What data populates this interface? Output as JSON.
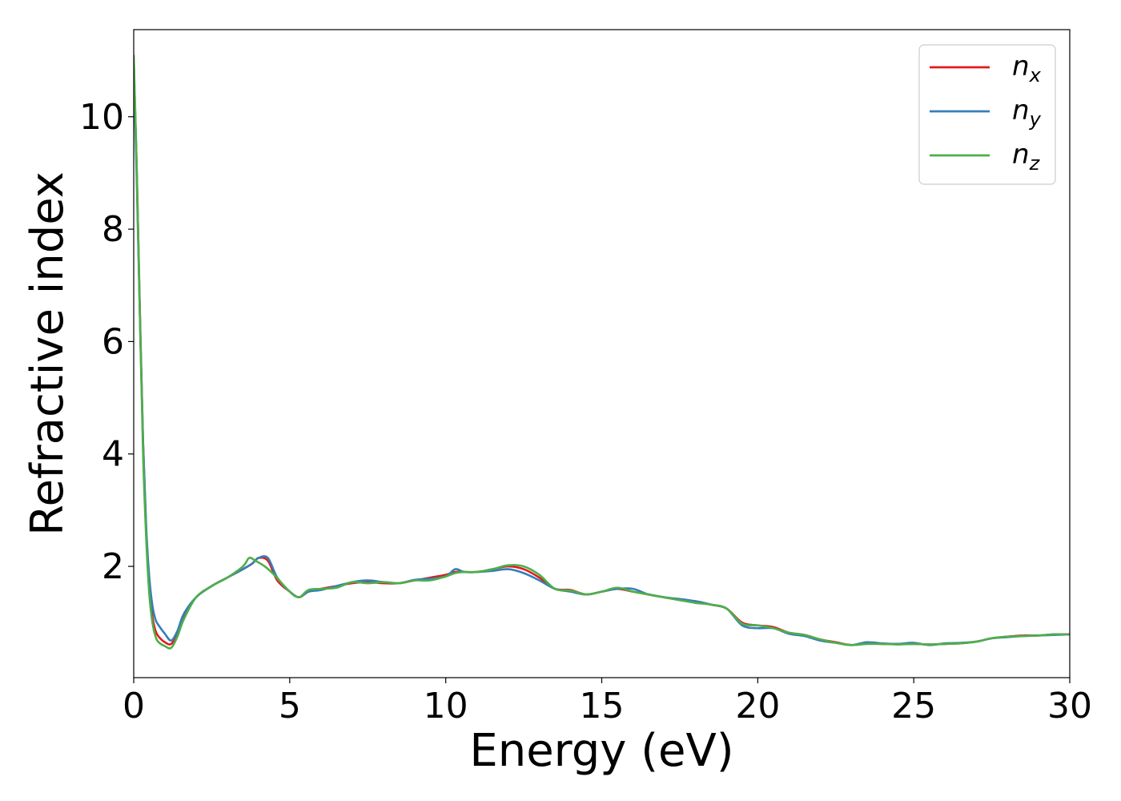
{
  "chart_data": {
    "type": "line",
    "xlabel": "Energy (eV)",
    "ylabel": "Refractive index",
    "xlim": [
      0,
      30
    ],
    "ylim": [
      0.02,
      11.55
    ],
    "xticks": [
      "0",
      "5",
      "10",
      "15",
      "20",
      "25",
      "30"
    ],
    "yticks": [
      "2",
      "4",
      "6",
      "8",
      "10"
    ],
    "grid": false,
    "legend_position": "top-right",
    "series": [
      {
        "name": "n_x",
        "main": "n",
        "sub": "x",
        "color": "#e41a1c",
        "x": [
          0,
          0.1,
          0.2,
          0.3,
          0.4,
          0.5,
          0.6,
          0.7,
          0.8,
          1.0,
          1.2,
          1.4,
          1.6,
          2.0,
          2.5,
          3.0,
          3.5,
          3.8,
          4.0,
          4.3,
          4.6,
          5.0,
          5.3,
          5.6,
          6.0,
          6.5,
          7.0,
          7.5,
          8.0,
          8.5,
          9.0,
          9.5,
          10.0,
          10.3,
          10.6,
          11.0,
          11.5,
          12.0,
          12.5,
          13.0,
          13.5,
          14.0,
          14.5,
          15.0,
          15.5,
          16.0,
          16.5,
          17.0,
          17.5,
          18.0,
          18.5,
          19.0,
          19.5,
          20.0,
          20.5,
          21.0,
          21.5,
          22.0,
          22.5,
          23.0,
          23.5,
          24.0,
          24.5,
          25.0,
          25.5,
          26.0,
          26.5,
          27.0,
          27.5,
          28.0,
          28.5,
          29.0,
          29.5,
          30.0
        ],
        "y": [
          11.0,
          9.0,
          6.5,
          4.2,
          2.6,
          1.6,
          1.1,
          0.85,
          0.75,
          0.65,
          0.62,
          0.8,
          1.1,
          1.45,
          1.65,
          1.8,
          1.95,
          2.05,
          2.15,
          2.1,
          1.75,
          1.55,
          1.45,
          1.55,
          1.6,
          1.65,
          1.7,
          1.72,
          1.7,
          1.7,
          1.75,
          1.8,
          1.85,
          1.9,
          1.9,
          1.9,
          1.95,
          2.0,
          1.95,
          1.8,
          1.6,
          1.58,
          1.5,
          1.55,
          1.6,
          1.55,
          1.5,
          1.45,
          1.4,
          1.38,
          1.32,
          1.25,
          1.0,
          0.95,
          0.92,
          0.82,
          0.78,
          0.7,
          0.65,
          0.6,
          0.63,
          0.62,
          0.62,
          0.62,
          0.61,
          0.62,
          0.63,
          0.66,
          0.72,
          0.75,
          0.77,
          0.77,
          0.79,
          0.79
        ]
      },
      {
        "name": "n_y",
        "main": "n",
        "sub": "y",
        "color": "#377eb8",
        "x": [
          0,
          0.1,
          0.2,
          0.3,
          0.4,
          0.5,
          0.6,
          0.7,
          0.8,
          1.0,
          1.2,
          1.4,
          1.6,
          2.0,
          2.5,
          3.0,
          3.5,
          3.8,
          4.0,
          4.3,
          4.6,
          5.0,
          5.3,
          5.6,
          6.0,
          6.5,
          7.0,
          7.5,
          8.0,
          8.5,
          9.0,
          9.5,
          10.0,
          10.3,
          10.6,
          11.0,
          11.5,
          12.0,
          12.5,
          13.0,
          13.5,
          14.0,
          14.5,
          15.0,
          15.5,
          16.0,
          16.5,
          17.0,
          17.5,
          18.0,
          18.5,
          19.0,
          19.5,
          20.0,
          20.5,
          21.0,
          21.5,
          22.0,
          22.5,
          23.0,
          23.5,
          24.0,
          24.5,
          25.0,
          25.5,
          26.0,
          26.5,
          27.0,
          27.5,
          28.0,
          28.5,
          29.0,
          29.5,
          30.0
        ],
        "y": [
          10.9,
          8.8,
          6.4,
          4.2,
          2.7,
          1.8,
          1.3,
          1.05,
          0.95,
          0.8,
          0.68,
          0.85,
          1.15,
          1.45,
          1.65,
          1.8,
          1.95,
          2.05,
          2.15,
          2.15,
          1.8,
          1.55,
          1.45,
          1.55,
          1.58,
          1.65,
          1.72,
          1.75,
          1.72,
          1.7,
          1.76,
          1.78,
          1.82,
          1.95,
          1.9,
          1.9,
          1.92,
          1.95,
          1.88,
          1.75,
          1.6,
          1.55,
          1.5,
          1.55,
          1.6,
          1.6,
          1.5,
          1.45,
          1.42,
          1.38,
          1.32,
          1.25,
          0.95,
          0.9,
          0.9,
          0.8,
          0.76,
          0.68,
          0.64,
          0.6,
          0.65,
          0.63,
          0.62,
          0.64,
          0.6,
          0.63,
          0.64,
          0.66,
          0.72,
          0.74,
          0.76,
          0.77,
          0.78,
          0.79
        ]
      },
      {
        "name": "n_z",
        "main": "n",
        "sub": "z",
        "color": "#4daf4a",
        "x": [
          0,
          0.1,
          0.2,
          0.3,
          0.4,
          0.5,
          0.6,
          0.7,
          0.8,
          1.0,
          1.2,
          1.4,
          1.6,
          2.0,
          2.5,
          3.0,
          3.5,
          3.7,
          3.9,
          4.2,
          4.5,
          5.0,
          5.3,
          5.6,
          6.0,
          6.5,
          7.0,
          7.5,
          8.0,
          8.5,
          9.0,
          9.5,
          10.0,
          10.3,
          10.6,
          11.0,
          11.5,
          12.0,
          12.5,
          13.0,
          13.5,
          14.0,
          14.5,
          15.0,
          15.5,
          16.0,
          16.5,
          17.0,
          17.5,
          18.0,
          18.5,
          19.0,
          19.5,
          20.0,
          20.5,
          21.0,
          21.5,
          22.0,
          22.5,
          23.0,
          23.5,
          24.0,
          24.5,
          25.0,
          25.5,
          26.0,
          26.5,
          27.0,
          27.5,
          28.0,
          28.5,
          29.0,
          29.5,
          30.0
        ],
        "y": [
          11.1,
          9.0,
          6.4,
          4.0,
          2.5,
          1.5,
          1.0,
          0.75,
          0.65,
          0.58,
          0.55,
          0.75,
          1.05,
          1.45,
          1.65,
          1.8,
          2.0,
          2.15,
          2.1,
          2.0,
          1.85,
          1.55,
          1.45,
          1.58,
          1.6,
          1.62,
          1.72,
          1.7,
          1.72,
          1.7,
          1.75,
          1.75,
          1.82,
          1.88,
          1.9,
          1.9,
          1.95,
          2.02,
          2.0,
          1.85,
          1.6,
          1.57,
          1.5,
          1.55,
          1.62,
          1.55,
          1.5,
          1.45,
          1.4,
          1.35,
          1.32,
          1.25,
          0.98,
          0.95,
          0.9,
          0.82,
          0.78,
          0.7,
          0.64,
          0.6,
          0.62,
          0.62,
          0.61,
          0.62,
          0.61,
          0.62,
          0.63,
          0.66,
          0.72,
          0.75,
          0.76,
          0.77,
          0.79,
          0.79
        ]
      }
    ]
  }
}
